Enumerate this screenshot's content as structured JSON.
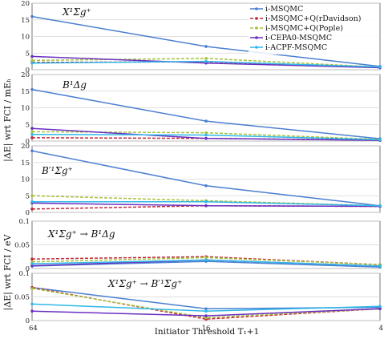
{
  "chart_data": {
    "type": "line",
    "shared_x": [
      "64",
      "16",
      "4"
    ],
    "xlabel": "Initiator Threshold T₁+1",
    "series_names": [
      "i-MSQMC",
      "i-MSQMC+Q(rDavidson)",
      "i-MSQMC+Q(Pople)",
      "i-CEPA0-MSQMC",
      "i-ACPF-MSQMC"
    ],
    "colors": [
      "#4a7fd0",
      "#c2283a",
      "#a6c23a",
      "#6a2fc0",
      "#30b8e8"
    ],
    "dashed": [
      false,
      true,
      true,
      false,
      false
    ],
    "ylabel_top": "|ΔE| wrt FCI / mEₕ",
    "ylabel_bottom": "|ΔE| wrt FCI / eV",
    "panels": [
      {
        "title": "X¹Σg⁺",
        "ylim": [
          0,
          20
        ],
        "yticks": [
          "0",
          "5",
          "10",
          "15",
          "20"
        ],
        "series": [
          {
            "name": "i-MSQMC",
            "values": [
              16.0,
              7.0,
              1.0
            ]
          },
          {
            "name": "i-MSQMC+Q(rDavidson)",
            "values": [
              2.2,
              2.4,
              0.7
            ]
          },
          {
            "name": "i-MSQMC+Q(Pople)",
            "values": [
              2.8,
              3.4,
              0.8
            ]
          },
          {
            "name": "i-CEPA0-MSQMC",
            "values": [
              4.0,
              2.0,
              0.6
            ]
          },
          {
            "name": "i-ACPF-MSQMC",
            "values": [
              2.0,
              2.5,
              0.8
            ]
          }
        ]
      },
      {
        "title": "B¹Δg",
        "ylim": [
          0,
          20
        ],
        "yticks": [
          "0",
          "5",
          "10",
          "15",
          "20"
        ],
        "series": [
          {
            "name": "i-MSQMC",
            "values": [
              15.5,
              6.0,
              0.7
            ]
          },
          {
            "name": "i-MSQMC+Q(rDavidson)",
            "values": [
              1.0,
              0.8,
              0.3
            ]
          },
          {
            "name": "i-MSQMC+Q(Pople)",
            "values": [
              2.8,
              2.5,
              0.5
            ]
          },
          {
            "name": "i-CEPA0-MSQMC",
            "values": [
              3.8,
              0.8,
              0.2
            ]
          },
          {
            "name": "i-ACPF-MSQMC",
            "values": [
              2.0,
              1.8,
              0.4
            ]
          }
        ]
      },
      {
        "title": "B′¹Σg⁺",
        "ylim": [
          0,
          20
        ],
        "yticks": [
          "0",
          "5",
          "10",
          "15",
          "20"
        ],
        "series": [
          {
            "name": "i-MSQMC",
            "values": [
              18.5,
              8.0,
              2.0
            ]
          },
          {
            "name": "i-MSQMC+Q(rDavidson)",
            "values": [
              1.0,
              2.0,
              1.8
            ]
          },
          {
            "name": "i-MSQMC+Q(Pople)",
            "values": [
              5.0,
              3.5,
              2.0
            ]
          },
          {
            "name": "i-CEPA0-MSQMC",
            "values": [
              2.8,
              2.0,
              1.8
            ]
          },
          {
            "name": "i-ACPF-MSQMC",
            "values": [
              3.2,
              3.2,
              2.0
            ]
          }
        ]
      },
      {
        "title": "X¹Σg⁺ → B¹Δg",
        "ylim": [
          0,
          0.1
        ],
        "yticks": [
          "0",
          "0.05",
          "0.1"
        ],
        "series": [
          {
            "name": "i-MSQMC",
            "values": [
              0.005,
              0.015,
              0.003
            ]
          },
          {
            "name": "i-MSQMC+Q(rDavidson)",
            "values": [
              0.02,
              0.025,
              0.008
            ]
          },
          {
            "name": "i-MSQMC+Q(Pople)",
            "values": [
              0.014,
              0.023,
              0.008
            ]
          },
          {
            "name": "i-CEPA0-MSQMC",
            "values": [
              0.006,
              0.018,
              0.005
            ]
          },
          {
            "name": "i-ACPF-MSQMC",
            "values": [
              0.01,
              0.018,
              0.005
            ]
          }
        ]
      },
      {
        "title": "X¹Σg⁺ → B′¹Σg⁺",
        "ylim": [
          0,
          0.1
        ],
        "yticks": [
          "0",
          "0.05",
          "0.1"
        ],
        "series": [
          {
            "name": "i-MSQMC",
            "values": [
              0.07,
              0.025,
              0.028
            ]
          },
          {
            "name": "i-MSQMC+Q(rDavidson)",
            "values": [
              0.07,
              0.003,
              0.025
            ]
          },
          {
            "name": "i-MSQMC+Q(Pople)",
            "values": [
              0.068,
              0.006,
              0.025
            ]
          },
          {
            "name": "i-CEPA0-MSQMC",
            "values": [
              0.02,
              0.01,
              0.025
            ]
          },
          {
            "name": "i-ACPF-MSQMC",
            "values": [
              0.035,
              0.02,
              0.03
            ]
          }
        ]
      }
    ]
  }
}
